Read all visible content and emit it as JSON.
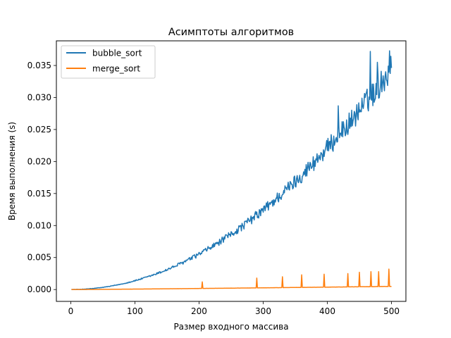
{
  "chart_data": {
    "type": "line",
    "title": "Асимптоты алгоритмов",
    "xlabel": "Размер входного массива",
    "ylabel": "Время выполнения (s)",
    "xlim": [
      -22.5,
      522.5
    ],
    "ylim": [
      -0.00185,
      0.03885
    ],
    "x_ticks": [
      0,
      100,
      200,
      300,
      400,
      500
    ],
    "x_tick_labels": [
      "0",
      "100",
      "200",
      "300",
      "400",
      "500"
    ],
    "y_ticks": [
      0.0,
      0.005,
      0.01,
      0.015,
      0.02,
      0.025,
      0.03,
      0.035
    ],
    "y_tick_labels": [
      "0.000",
      "0.005",
      "0.010",
      "0.015",
      "0.020",
      "0.025",
      "0.030",
      "0.035"
    ],
    "grid": false,
    "legend_position": "top-left",
    "x": {
      "start": 1,
      "end": 500,
      "step": 1
    },
    "series": [
      {
        "name": "bubble_sort",
        "color": "#1f77b4",
        "model": "quadratic",
        "coefficient": 1.38e-07,
        "points": [
          [
            0,
            0
          ],
          [
            25,
            0.0001
          ],
          [
            50,
            0.0003
          ],
          [
            75,
            0.0008
          ],
          [
            100,
            0.0014
          ],
          [
            125,
            0.0021
          ],
          [
            150,
            0.0031
          ],
          [
            175,
            0.0042
          ],
          [
            200,
            0.0055
          ],
          [
            225,
            0.007
          ],
          [
            250,
            0.0086
          ],
          [
            275,
            0.0104
          ],
          [
            300,
            0.0124
          ],
          [
            325,
            0.0146
          ],
          [
            350,
            0.0169
          ],
          [
            375,
            0.0194
          ],
          [
            400,
            0.0221
          ],
          [
            425,
            0.0249
          ],
          [
            450,
            0.028
          ],
          [
            475,
            0.0312
          ],
          [
            500,
            0.0345
          ]
        ],
        "peaks": [
          [
            417,
            0.0287
          ],
          [
            467,
            0.0372
          ],
          [
            478,
            0.0355
          ],
          [
            497,
            0.0373
          ]
        ]
      },
      {
        "name": "merge_sort",
        "color": "#ff7f0e",
        "model": "nlogn",
        "coefficient": 4.9e-07,
        "points": [
          [
            0,
            0
          ],
          [
            50,
            0.0001
          ],
          [
            100,
            0.0003
          ],
          [
            150,
            0.0006
          ],
          [
            200,
            0.0008
          ],
          [
            250,
            0.001
          ],
          [
            300,
            0.0012
          ],
          [
            350,
            0.0015
          ],
          [
            400,
            0.0017
          ],
          [
            450,
            0.0019
          ],
          [
            500,
            0.0022
          ]
        ],
        "peaks": [
          [
            205,
            0.0012
          ],
          [
            290,
            0.0018
          ],
          [
            330,
            0.002
          ],
          [
            360,
            0.0023
          ],
          [
            395,
            0.0024
          ],
          [
            432,
            0.0025
          ],
          [
            450,
            0.0027
          ],
          [
            468,
            0.0028
          ],
          [
            480,
            0.0028
          ],
          [
            496,
            0.0032
          ]
        ]
      }
    ]
  }
}
